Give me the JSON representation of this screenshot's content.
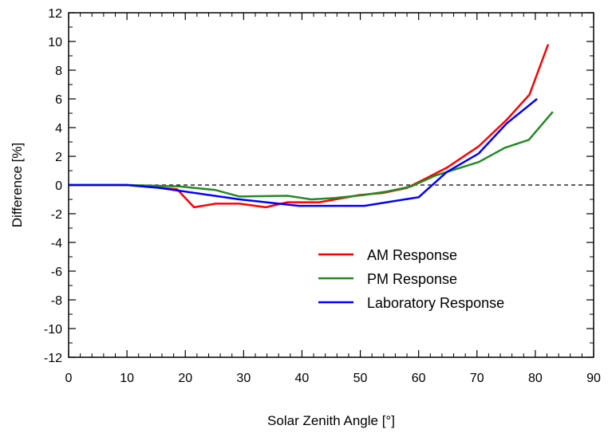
{
  "chart_data": {
    "type": "line",
    "xlabel": "Solar Zenith Angle [°]",
    "ylabel": "Difference [%]",
    "xlim": [
      0,
      90
    ],
    "ylim": [
      -12,
      12
    ],
    "xticks": [
      0,
      10,
      20,
      30,
      40,
      50,
      60,
      70,
      80,
      90
    ],
    "yticks": [
      -12,
      -10,
      -8,
      -6,
      -4,
      -2,
      0,
      2,
      4,
      6,
      8,
      10,
      12
    ],
    "grid": false,
    "reference_line": {
      "y": 0,
      "style": "dashed",
      "color": "#000000"
    },
    "legend_position": "lower-right",
    "series": [
      {
        "name": "AM Response",
        "color": "#ff0000",
        "x": [
          0,
          10,
          18.6,
          21.5,
          25.2,
          29.3,
          33.8,
          37.5,
          43,
          49.8,
          53.9,
          58,
          60.7,
          64.8,
          70.3,
          75.1,
          79,
          82.2
        ],
        "y": [
          0,
          0,
          -0.3,
          -1.55,
          -1.3,
          -1.3,
          -1.55,
          -1.2,
          -1.2,
          -0.7,
          -0.55,
          -0.2,
          0.35,
          1.2,
          2.7,
          4.55,
          6.3,
          9.8
        ]
      },
      {
        "name": "PM Response",
        "color": "#228b22",
        "x": [
          0,
          10,
          19,
          25.2,
          29.3,
          37.5,
          41.6,
          45.7,
          50.5,
          54.6,
          58.7,
          62.8,
          70.3,
          74.8,
          78.9,
          83
        ],
        "y": [
          0,
          0,
          -0.1,
          -0.35,
          -0.8,
          -0.75,
          -1.0,
          -0.9,
          -0.7,
          -0.45,
          -0.1,
          0.65,
          1.6,
          2.6,
          3.15,
          5.1
        ]
      },
      {
        "name": "Laboratory Response",
        "color": "#0000ff",
        "x": [
          0,
          10,
          15.6,
          29.3,
          39.5,
          50.7,
          60,
          64.8,
          70.3,
          75.1,
          80.3
        ],
        "y": [
          0,
          0,
          -0.2,
          -1.0,
          -1.45,
          -1.45,
          -0.85,
          0.9,
          2.2,
          4.3,
          6.0
        ]
      }
    ]
  }
}
